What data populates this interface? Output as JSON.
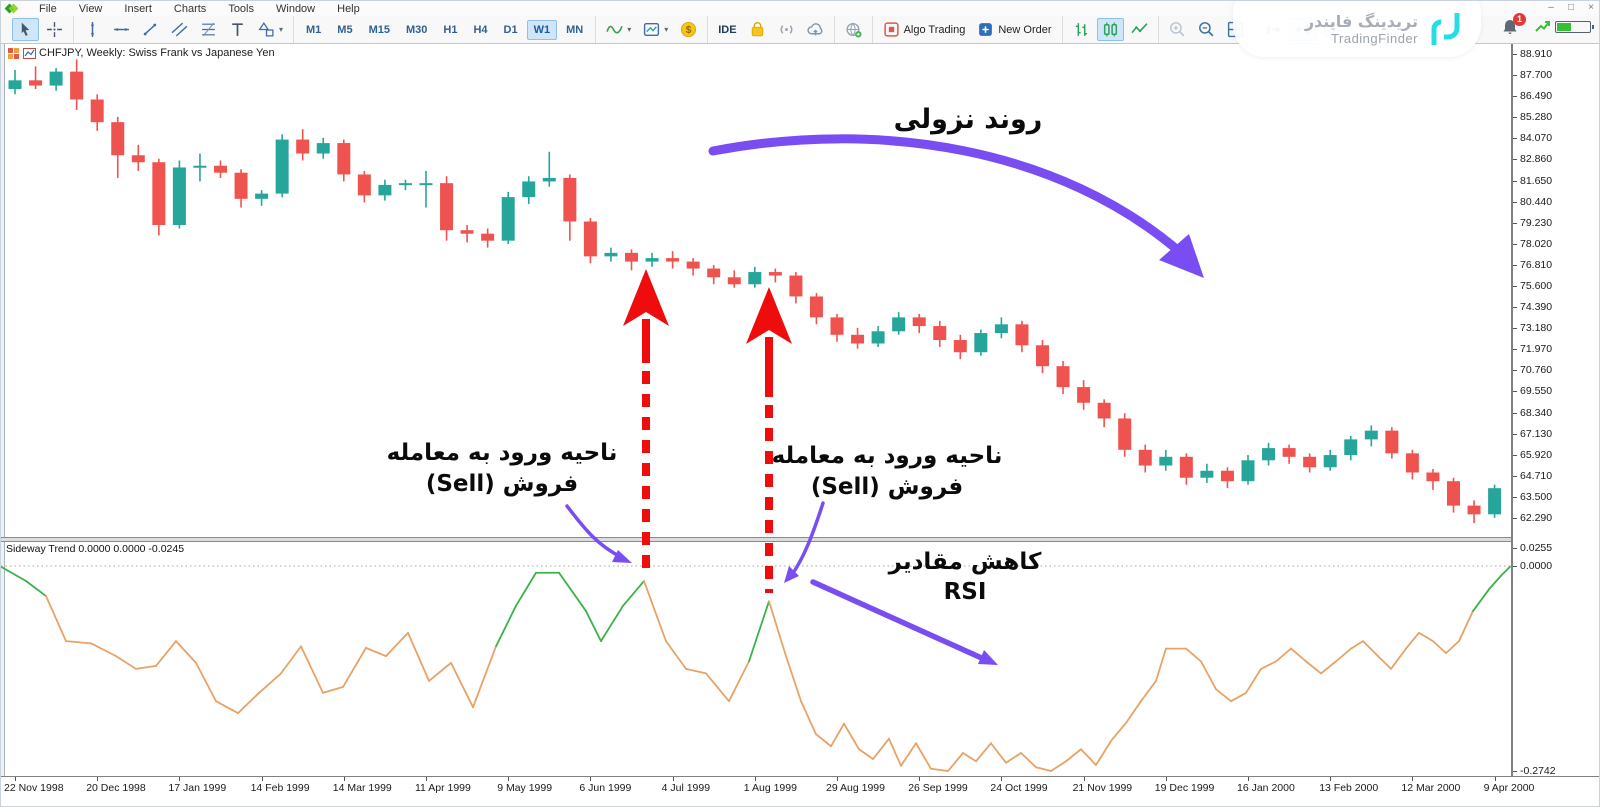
{
  "window": {
    "menu": [
      "File",
      "View",
      "Insert",
      "Charts",
      "Tools",
      "Window",
      "Help"
    ],
    "controls": {
      "minimize": "–",
      "restore": "□",
      "close": "×"
    }
  },
  "toolbar": {
    "timeframes": {
      "items": [
        "M1",
        "M5",
        "M15",
        "M30",
        "H1",
        "H4",
        "D1",
        "W1",
        "MN"
      ],
      "selected": "W1"
    },
    "groups": [
      {
        "items": [
          {
            "icon": "cursor-icon",
            "name": "cursor",
            "selected": true
          },
          {
            "icon": "crosshair-icon",
            "name": "crosshair"
          }
        ]
      },
      {
        "items": [
          {
            "icon": "vertical-line-icon",
            "name": "vertical-line"
          },
          {
            "icon": "horizontal-line-icon",
            "name": "horizontal-line"
          },
          {
            "icon": "trendline-icon",
            "name": "trendline"
          },
          {
            "icon": "channel-icon",
            "name": "equidistant-channel"
          },
          {
            "icon": "fibonacci-icon",
            "name": "fibonacci"
          },
          {
            "icon": "text-icon",
            "name": "text-tool"
          },
          {
            "icon": "shapes-icon",
            "name": "shapes",
            "caret": true
          }
        ]
      },
      {
        "timeframes": true
      },
      {
        "items": [
          {
            "icon": "indicators-icon",
            "name": "indicators",
            "caret": true
          },
          {
            "icon": "template-icon",
            "name": "chart-templates",
            "caret": true
          },
          {
            "icon": "dollar-icon",
            "name": "market-watch"
          }
        ]
      },
      {
        "items": [
          {
            "icon": "",
            "name": "ide",
            "label": "IDE"
          },
          {
            "icon": "market-bag-icon",
            "name": "market"
          },
          {
            "icon": "signals-icon",
            "name": "signals"
          },
          {
            "icon": "cloud-icon",
            "name": "cloud-storage"
          }
        ]
      },
      {
        "items": [
          {
            "icon": "community-icon",
            "name": "community"
          }
        ]
      },
      {
        "items": [
          {
            "icon": "algo-trading-icon",
            "name": "algo-trading",
            "label": "Algo Trading"
          },
          {
            "icon": "new-order-icon",
            "name": "new-order",
            "label": "New Order"
          }
        ]
      },
      {
        "items": [
          {
            "icon": "bars-icon",
            "name": "bar-chart-mode"
          },
          {
            "icon": "candles-icon",
            "name": "candle-chart-mode",
            "selected": true
          },
          {
            "icon": "line-icon",
            "name": "line-chart-mode"
          }
        ]
      },
      {
        "items": [
          {
            "icon": "zoom-in-icon",
            "name": "zoom-in",
            "disabled": true
          },
          {
            "icon": "zoom-out-icon",
            "name": "zoom-out"
          },
          {
            "icon": "tile-windows-icon",
            "name": "tile-windows"
          }
        ]
      },
      {
        "items": [
          {
            "icon": "auto-scroll-icon",
            "name": "auto-scroll"
          },
          {
            "icon": "chart-shift-icon",
            "name": "chart-shift",
            "selected": true
          },
          {
            "icon": "screenshot-icon",
            "name": "screenshot"
          }
        ]
      }
    ]
  },
  "watermark": {
    "title_fa": "تریدینگ فایندر",
    "title_en": "TradingFinder"
  },
  "status": {
    "notification_count": "1"
  },
  "chart": {
    "title": "CHFJPY, Weekly:  Swiss Frank vs Japanese Yen",
    "price_axis": [
      "88.910",
      "87.700",
      "86.490",
      "85.280",
      "84.070",
      "82.860",
      "81.650",
      "80.440",
      "79.230",
      "78.020",
      "76.810",
      "75.600",
      "74.390",
      "73.180",
      "71.970",
      "70.760",
      "69.550",
      "68.340",
      "67.130",
      "65.920",
      "64.710",
      "63.500",
      "62.290"
    ],
    "indicator_label": "Sideway Trend 0.0000 0.0000 -0.0245",
    "indicator_axis": {
      "top": "0.0255",
      "zero": "0.0000",
      "bottom": "-0.2742"
    },
    "date_axis": [
      "22 Nov 1998",
      "20 Dec 1998",
      "17 Jan 1999",
      "14 Feb 1999",
      "14 Mar 1999",
      "11 Apr 1999",
      "9 May 1999",
      "6 Jun 1999",
      "4 Jul 1999",
      "1 Aug 1999",
      "29 Aug 1999",
      "26 Sep 1999",
      "24 Oct 1999",
      "21 Nov 1999",
      "19 Dec 1999",
      "16 Jan 2000",
      "13 Feb 2000",
      "12 Mar 2000",
      "9 Apr 2000"
    ]
  },
  "annotations": {
    "trend_label": "روند نزولی",
    "entry1_line1": "ناحیه ورود به معامله",
    "entry1_line2": "فروش (Sell)",
    "entry2_line1": "ناحیه ورود به معامله",
    "entry2_line2": "فروش (Sell)",
    "rsi_line1": "کاهش مقادیر",
    "rsi_line2": "RSI"
  },
  "colors": {
    "bull": "#26a69a",
    "bear": "#ef5350",
    "indicator_orange": "#e8a265",
    "indicator_green": "#38b348",
    "annotation_purple": "#7a4df2",
    "arrow_red": "#ee0d0c"
  },
  "chart_data": {
    "type": "candlestick",
    "symbol": "CHFJPY",
    "timeframe": "Weekly",
    "price_range": [
      62.29,
      88.91
    ],
    "price_step": 1.21,
    "dates": [
      "22 Nov 1998",
      "20 Dec 1998",
      "17 Jan 1999",
      "14 Feb 1999",
      "14 Mar 1999",
      "11 Apr 1999",
      "9 May 1999",
      "6 Jun 1999",
      "4 Jul 1999",
      "1 Aug 1999",
      "29 Aug 1999",
      "26 Sep 1999",
      "24 Oct 1999",
      "21 Nov 1999",
      "19 Dec 1999",
      "16 Jan 2000",
      "13 Feb 2000",
      "12 Mar 2000",
      "9 Apr 2000"
    ],
    "candles": [
      [
        86.9,
        88.0,
        86.6,
        87.4
      ],
      [
        87.4,
        88.2,
        86.9,
        87.1
      ],
      [
        87.1,
        88.1,
        86.8,
        87.9
      ],
      [
        87.9,
        88.6,
        85.7,
        86.3
      ],
      [
        86.3,
        86.6,
        84.5,
        85.0
      ],
      [
        85.0,
        85.3,
        81.8,
        83.1
      ],
      [
        83.1,
        83.7,
        82.2,
        82.7
      ],
      [
        82.7,
        82.9,
        78.5,
        79.1
      ],
      [
        79.1,
        82.8,
        78.9,
        82.4
      ],
      [
        82.4,
        83.2,
        81.6,
        82.5
      ],
      [
        82.5,
        82.8,
        81.8,
        82.1
      ],
      [
        82.1,
        82.3,
        80.1,
        80.6
      ],
      [
        80.6,
        81.1,
        80.2,
        80.9
      ],
      [
        80.9,
        84.3,
        80.7,
        84.0
      ],
      [
        84.0,
        84.6,
        82.8,
        83.2
      ],
      [
        83.2,
        84.1,
        82.9,
        83.8
      ],
      [
        83.8,
        84.0,
        81.6,
        82.0
      ],
      [
        82.0,
        82.2,
        80.4,
        80.8
      ],
      [
        80.8,
        81.7,
        80.5,
        81.4
      ],
      [
        81.4,
        81.7,
        81.1,
        81.5
      ],
      [
        81.5,
        82.2,
        80.1,
        81.5
      ],
      [
        81.5,
        81.9,
        78.2,
        78.8
      ],
      [
        78.8,
        79.1,
        78.1,
        78.6
      ],
      [
        78.6,
        78.9,
        77.8,
        78.2
      ],
      [
        78.2,
        81.0,
        78.0,
        80.7
      ],
      [
        80.7,
        81.9,
        80.3,
        81.6
      ],
      [
        81.6,
        83.3,
        81.3,
        81.8
      ],
      [
        81.8,
        82.0,
        78.2,
        79.3
      ],
      [
        79.3,
        79.5,
        76.9,
        77.3
      ],
      [
        77.3,
        77.8,
        77.0,
        77.5
      ],
      [
        77.5,
        77.7,
        76.5,
        77.0
      ],
      [
        77.0,
        77.5,
        76.7,
        77.2
      ],
      [
        77.2,
        77.6,
        76.6,
        77.0
      ],
      [
        77.0,
        77.2,
        76.2,
        76.6
      ],
      [
        76.6,
        76.8,
        75.7,
        76.1
      ],
      [
        76.1,
        76.5,
        75.5,
        75.7
      ],
      [
        75.7,
        76.7,
        75.5,
        76.4
      ],
      [
        76.4,
        76.6,
        75.8,
        76.2
      ],
      [
        76.2,
        76.4,
        74.6,
        75.0
      ],
      [
        75.0,
        75.2,
        73.4,
        73.8
      ],
      [
        73.8,
        74.0,
        72.4,
        72.8
      ],
      [
        72.8,
        73.2,
        72.0,
        72.3
      ],
      [
        72.3,
        73.3,
        72.1,
        73.0
      ],
      [
        73.0,
        74.1,
        72.8,
        73.8
      ],
      [
        73.8,
        74.0,
        72.9,
        73.3
      ],
      [
        73.3,
        73.6,
        72.1,
        72.5
      ],
      [
        72.5,
        72.8,
        71.4,
        71.8
      ],
      [
        71.8,
        73.1,
        71.6,
        72.9
      ],
      [
        72.9,
        73.8,
        72.6,
        73.4
      ],
      [
        73.4,
        73.6,
        71.8,
        72.2
      ],
      [
        72.2,
        72.5,
        70.6,
        71.0
      ],
      [
        71.0,
        71.3,
        69.4,
        69.8
      ],
      [
        69.8,
        70.2,
        68.5,
        68.9
      ],
      [
        68.9,
        69.1,
        67.5,
        68.0
      ],
      [
        68.0,
        68.3,
        65.8,
        66.2
      ],
      [
        66.2,
        66.5,
        64.9,
        65.3
      ],
      [
        65.3,
        66.2,
        65.0,
        65.8
      ],
      [
        65.8,
        66.0,
        64.2,
        64.6
      ],
      [
        64.6,
        65.4,
        64.3,
        65.0
      ],
      [
        65.0,
        65.2,
        64.0,
        64.4
      ],
      [
        64.4,
        65.9,
        64.2,
        65.6
      ],
      [
        65.6,
        66.6,
        65.3,
        66.3
      ],
      [
        66.3,
        66.5,
        65.4,
        65.8
      ],
      [
        65.8,
        66.0,
        64.9,
        65.2
      ],
      [
        65.2,
        66.2,
        65.0,
        65.9
      ],
      [
        65.9,
        67.0,
        65.6,
        66.8
      ],
      [
        66.8,
        67.6,
        66.4,
        67.3
      ],
      [
        67.3,
        67.5,
        65.7,
        66.0
      ],
      [
        66.0,
        66.2,
        64.5,
        64.9
      ],
      [
        64.9,
        65.1,
        63.9,
        64.4
      ],
      [
        64.4,
        64.6,
        62.6,
        63.0
      ],
      [
        63.0,
        63.3,
        62.0,
        62.5
      ],
      [
        62.5,
        64.2,
        62.3,
        64.0
      ]
    ],
    "indicator": {
      "name": "Sideway Trend",
      "current_values": [
        "0.0000",
        "0.0000",
        "-0.0245"
      ],
      "scale": {
        "max": 0.0255,
        "zero": 0.0,
        "min": -0.2742
      },
      "values": [
        [
          0,
          -0.001
        ],
        [
          25,
          -0.02
        ],
        [
          45,
          -0.04
        ],
        [
          65,
          -0.1
        ],
        [
          90,
          -0.103
        ],
        [
          115,
          -0.12
        ],
        [
          135,
          -0.137
        ],
        [
          155,
          -0.133
        ],
        [
          175,
          -0.1
        ],
        [
          195,
          -0.129
        ],
        [
          215,
          -0.18
        ],
        [
          237,
          -0.196
        ],
        [
          258,
          -0.169
        ],
        [
          280,
          -0.143
        ],
        [
          300,
          -0.107
        ],
        [
          322,
          -0.169
        ],
        [
          342,
          -0.161
        ],
        [
          365,
          -0.109
        ],
        [
          385,
          -0.12
        ],
        [
          407,
          -0.089
        ],
        [
          428,
          -0.153
        ],
        [
          450,
          -0.129
        ],
        [
          472,
          -0.188
        ],
        [
          495,
          -0.107
        ],
        [
          515,
          -0.053
        ],
        [
          535,
          -0.009
        ],
        [
          558,
          -0.009
        ],
        [
          585,
          -0.06
        ],
        [
          600,
          -0.1
        ],
        [
          622,
          -0.053
        ],
        [
          643,
          -0.02
        ],
        [
          665,
          -0.1
        ],
        [
          685,
          -0.137
        ],
        [
          705,
          -0.143
        ],
        [
          728,
          -0.18
        ],
        [
          748,
          -0.127
        ],
        [
          768,
          -0.047
        ],
        [
          785,
          -0.12
        ],
        [
          800,
          -0.18
        ],
        [
          815,
          -0.224
        ],
        [
          830,
          -0.24
        ],
        [
          843,
          -0.21
        ],
        [
          858,
          -0.244
        ],
        [
          872,
          -0.257
        ],
        [
          888,
          -0.23
        ],
        [
          900,
          -0.266
        ],
        [
          915,
          -0.236
        ],
        [
          930,
          -0.27
        ],
        [
          947,
          -0.273
        ],
        [
          962,
          -0.249
        ],
        [
          975,
          -0.26
        ],
        [
          990,
          -0.236
        ],
        [
          1005,
          -0.262
        ],
        [
          1020,
          -0.249
        ],
        [
          1035,
          -0.268
        ],
        [
          1050,
          -0.273
        ],
        [
          1065,
          -0.26
        ],
        [
          1080,
          -0.244
        ],
        [
          1095,
          -0.265
        ],
        [
          1110,
          -0.233
        ],
        [
          1125,
          -0.209
        ],
        [
          1140,
          -0.18
        ],
        [
          1155,
          -0.153
        ],
        [
          1165,
          -0.11
        ],
        [
          1185,
          -0.11
        ],
        [
          1200,
          -0.127
        ],
        [
          1215,
          -0.164
        ],
        [
          1230,
          -0.18
        ],
        [
          1245,
          -0.169
        ],
        [
          1260,
          -0.137
        ],
        [
          1275,
          -0.127
        ],
        [
          1290,
          -0.11
        ],
        [
          1305,
          -0.127
        ],
        [
          1320,
          -0.143
        ],
        [
          1335,
          -0.127
        ],
        [
          1350,
          -0.11
        ],
        [
          1362,
          -0.1
        ],
        [
          1377,
          -0.12
        ],
        [
          1390,
          -0.137
        ],
        [
          1405,
          -0.11
        ],
        [
          1418,
          -0.089
        ],
        [
          1432,
          -0.1
        ],
        [
          1445,
          -0.116
        ],
        [
          1458,
          -0.1
        ],
        [
          1472,
          -0.06
        ],
        [
          1488,
          -0.031
        ],
        [
          1500,
          -0.013
        ],
        [
          1509,
          -0.001
        ]
      ],
      "green_ranges": [
        [
          0,
          48
        ],
        [
          493,
          646
        ],
        [
          744,
          770
        ],
        [
          1468,
          1510
        ]
      ]
    }
  }
}
